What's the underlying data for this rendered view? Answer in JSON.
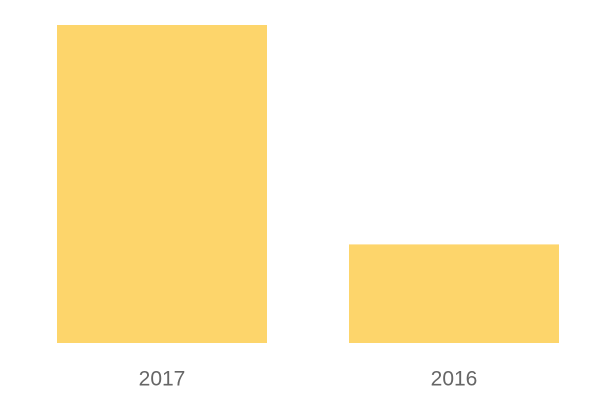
{
  "chart_data": {
    "type": "bar",
    "categories": [
      "2017",
      "2016"
    ],
    "values": [
      100,
      31
    ],
    "color": "#fdd56b"
  }
}
